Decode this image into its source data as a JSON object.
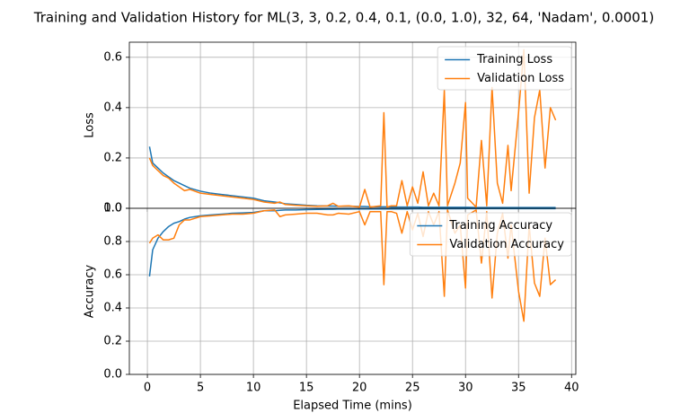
{
  "title": "Training and Validation History for ML(3, 3, 0.2, 0.4, 0.1, (0.0, 1.0), 32, 64, 'Nadam', 0.0001)",
  "chart_data": [
    {
      "type": "line",
      "ylabel": "Loss",
      "x": [
        0.2,
        0.5,
        1,
        1.5,
        2,
        2.5,
        3,
        3.5,
        4,
        5,
        6,
        7,
        8,
        9,
        10,
        11,
        12,
        12.5,
        13,
        14,
        15,
        16,
        17,
        17.5,
        18,
        19,
        20,
        20.5,
        21,
        22,
        22.3,
        22.6,
        23,
        23.5,
        24,
        24.5,
        25,
        25.5,
        26,
        26.5,
        27,
        27.5,
        28,
        28.3,
        29,
        29.5,
        30,
        30.2,
        31,
        31.5,
        32,
        32.5,
        33,
        33.5,
        34,
        34.3,
        35,
        35.5,
        36,
        36.5,
        37,
        37.5,
        38,
        38.5
      ],
      "series": [
        {
          "name": "Training Loss",
          "color": "#1f77b4",
          "values": [
            0.245,
            0.18,
            0.16,
            0.14,
            0.125,
            0.11,
            0.1,
            0.09,
            0.08,
            0.068,
            0.06,
            0.055,
            0.05,
            0.045,
            0.04,
            0.03,
            0.025,
            0.022,
            0.018,
            0.015,
            0.012,
            0.01,
            0.009,
            0.009,
            0.008,
            0.008,
            0.007,
            0.007,
            0.006,
            0.006,
            0.006,
            0.006,
            0.005,
            0.005,
            0.005,
            0.005,
            0.005,
            0.005,
            0.004,
            0.004,
            0.004,
            0.004,
            0.004,
            0.004,
            0.004,
            0.004,
            0.004,
            0.004,
            0.003,
            0.003,
            0.003,
            0.003,
            0.003,
            0.003,
            0.003,
            0.003,
            0.003,
            0.003,
            0.003,
            0.003,
            0.003,
            0.003,
            0.003,
            0.003
          ]
        },
        {
          "name": "Validation Loss",
          "color": "#ff7f0e",
          "values": [
            0.2,
            0.17,
            0.15,
            0.13,
            0.12,
            0.1,
            0.085,
            0.07,
            0.075,
            0.06,
            0.055,
            0.05,
            0.045,
            0.04,
            0.035,
            0.025,
            0.02,
            0.025,
            0.015,
            0.012,
            0.01,
            0.008,
            0.01,
            0.02,
            0.008,
            0.01,
            0.005,
            0.075,
            0.005,
            0.01,
            0.38,
            0.005,
            0.01,
            0.01,
            0.11,
            0.01,
            0.085,
            0.02,
            0.145,
            0.01,
            0.06,
            0.01,
            0.47,
            0.01,
            0.1,
            0.18,
            0.42,
            0.04,
            0.005,
            0.27,
            0.01,
            0.48,
            0.1,
            0.02,
            0.25,
            0.07,
            0.38,
            0.63,
            0.06,
            0.36,
            0.47,
            0.16,
            0.4,
            0.35
          ]
        }
      ],
      "xlim": [
        -1.7,
        40.4
      ],
      "xticks": [
        0,
        5,
        10,
        15,
        20,
        25,
        30,
        35,
        40
      ],
      "ylim": [
        0,
        0.66
      ],
      "yticks": [
        {
          "value": 0,
          "label": "0.0"
        },
        0.2,
        0.4,
        0.6
      ],
      "grid": true,
      "legend": "upper right"
    },
    {
      "type": "line",
      "ylabel": "Accuracy",
      "xlabel": "Elapsed Time (mins)",
      "x": [
        0.2,
        0.5,
        1,
        1.5,
        2,
        2.5,
        3,
        3.5,
        4,
        5,
        6,
        7,
        8,
        9,
        10,
        11,
        12,
        12.5,
        13,
        14,
        15,
        16,
        17,
        17.5,
        18,
        19,
        20,
        20.5,
        21,
        22,
        22.3,
        22.6,
        23,
        23.5,
        24,
        24.5,
        25,
        25.5,
        26,
        26.5,
        27,
        27.5,
        28,
        28.3,
        29,
        29.5,
        30,
        30.2,
        31,
        31.5,
        32,
        32.5,
        33,
        33.5,
        34,
        34.3,
        35,
        35.5,
        36,
        36.5,
        37,
        37.5,
        38,
        38.5
      ],
      "series": [
        {
          "name": "Training Accuracy",
          "color": "#1f77b4",
          "values": [
            0.59,
            0.75,
            0.82,
            0.86,
            0.89,
            0.91,
            0.92,
            0.935,
            0.945,
            0.955,
            0.96,
            0.965,
            0.97,
            0.972,
            0.975,
            0.985,
            0.985,
            0.988,
            0.99,
            0.99,
            0.992,
            0.993,
            0.994,
            0.994,
            0.995,
            0.995,
            0.996,
            0.996,
            0.996,
            0.996,
            0.996,
            0.996,
            0.996,
            0.996,
            0.996,
            0.996,
            0.997,
            0.997,
            0.997,
            0.997,
            0.997,
            0.997,
            0.997,
            0.997,
            0.997,
            0.997,
            0.998,
            0.998,
            0.998,
            0.998,
            0.998,
            0.998,
            0.998,
            0.998,
            0.998,
            0.998,
            0.998,
            0.998,
            0.998,
            0.998,
            0.998,
            0.998,
            0.998,
            0.998
          ]
        },
        {
          "name": "Validation Accuracy",
          "color": "#ff7f0e",
          "values": [
            0.79,
            0.82,
            0.84,
            0.81,
            0.81,
            0.82,
            0.9,
            0.93,
            0.93,
            0.95,
            0.955,
            0.96,
            0.965,
            0.965,
            0.97,
            0.985,
            0.99,
            0.95,
            0.96,
            0.965,
            0.97,
            0.97,
            0.96,
            0.96,
            0.97,
            0.965,
            0.98,
            0.9,
            0.98,
            0.98,
            0.54,
            0.98,
            0.98,
            0.97,
            0.85,
            0.98,
            0.87,
            0.97,
            0.83,
            0.98,
            0.9,
            0.98,
            0.47,
            0.99,
            0.85,
            0.9,
            0.52,
            0.96,
            0.99,
            0.67,
            0.98,
            0.46,
            0.85,
            0.97,
            0.7,
            0.9,
            0.5,
            0.32,
            0.9,
            0.55,
            0.47,
            0.82,
            0.54,
            0.57
          ]
        }
      ],
      "xlim": [
        -1.7,
        40.4
      ],
      "xticks": [
        0,
        5,
        10,
        15,
        20,
        25,
        30,
        35,
        40
      ],
      "ylim": [
        0,
        1
      ],
      "yticks": [
        {
          "value": 0,
          "label": "0.0"
        },
        0.2,
        0.4,
        0.6,
        0.8,
        {
          "value": 1,
          "label": "1.0"
        }
      ],
      "grid": true,
      "legend": "upper right"
    }
  ]
}
